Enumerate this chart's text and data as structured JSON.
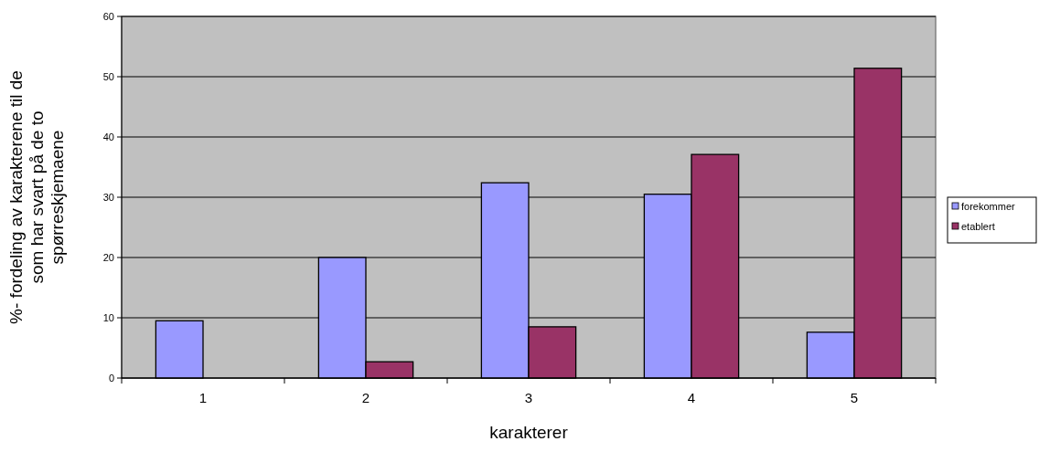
{
  "chart_data": {
    "type": "bar",
    "xlabel": "karakterer",
    "ylabel": "%- fordeling av karakterene til de\nsom har svart på de to\nspørreskjemaene",
    "categories": [
      "1",
      "2",
      "3",
      "4",
      "5"
    ],
    "series": [
      {
        "name": "forekommer",
        "color": "#9999ff",
        "values": [
          9.5,
          20,
          32.4,
          30.5,
          7.6
        ]
      },
      {
        "name": "etablert",
        "color": "#993366",
        "values": [
          null,
          2.7,
          8.5,
          37.1,
          51.4
        ]
      }
    ],
    "ylim": [
      0,
      60
    ],
    "yticks": [
      0,
      10,
      20,
      30,
      40,
      50,
      60
    ],
    "grid": "y",
    "legend": "right"
  }
}
